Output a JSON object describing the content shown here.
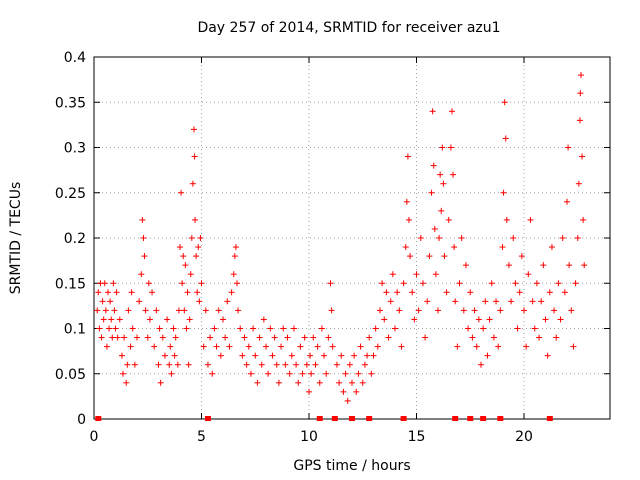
{
  "chart_data": {
    "type": "scatter",
    "title": "Day 257 of 2014, SRMTID for receiver azu1",
    "xlabel": "GPS time / hours",
    "ylabel": "SRMTID / TECUs",
    "xlim": [
      0,
      24
    ],
    "ylim": [
      0,
      0.4
    ],
    "xticks": [
      0,
      5,
      10,
      15,
      20
    ],
    "xtick_labels": [
      "0",
      "5",
      "10",
      "15",
      "20"
    ],
    "yticks": [
      0,
      0.05,
      0.1,
      0.15,
      0.2,
      0.25,
      0.3,
      0.35,
      0.4
    ],
    "ytick_labels": [
      "0",
      "0.05",
      "0.1",
      "0.15",
      "0.2",
      "0.25",
      "0.3",
      "0.35",
      "0.4"
    ],
    "grid": true,
    "marker": "+",
    "series_color": "#ff0000",
    "series": [
      {
        "name": "SRMTID",
        "points": [
          [
            0.15,
            0.12
          ],
          [
            0.2,
            0.14
          ],
          [
            0.25,
            0.1
          ],
          [
            0.3,
            0.15
          ],
          [
            0.35,
            0.09
          ],
          [
            0.4,
            0.13
          ],
          [
            0.45,
            0.11
          ],
          [
            0.5,
            0.15
          ],
          [
            0.55,
            0.12
          ],
          [
            0.6,
            0.08
          ],
          [
            0.65,
            0.14
          ],
          [
            0.7,
            0.1
          ],
          [
            0.75,
            0.13
          ],
          [
            0.8,
            0.11
          ],
          [
            0.85,
            0.09
          ],
          [
            0.9,
            0.15
          ],
          [
            0.95,
            0.12
          ],
          [
            1.0,
            0.1
          ],
          [
            1.05,
            0.14
          ],
          [
            1.1,
            0.09
          ],
          [
            1.2,
            0.11
          ],
          [
            1.3,
            0.07
          ],
          [
            1.35,
            0.05
          ],
          [
            1.4,
            0.09
          ],
          [
            1.5,
            0.04
          ],
          [
            1.55,
            0.06
          ],
          [
            1.6,
            0.12
          ],
          [
            1.7,
            0.08
          ],
          [
            1.75,
            0.14
          ],
          [
            1.8,
            0.1
          ],
          [
            1.9,
            0.06
          ],
          [
            2.0,
            0.09
          ],
          [
            2.1,
            0.13
          ],
          [
            2.2,
            0.16
          ],
          [
            2.25,
            0.22
          ],
          [
            2.3,
            0.2
          ],
          [
            2.35,
            0.18
          ],
          [
            2.4,
            0.12
          ],
          [
            2.5,
            0.09
          ],
          [
            2.55,
            0.15
          ],
          [
            2.6,
            0.11
          ],
          [
            2.7,
            0.14
          ],
          [
            2.8,
            0.08
          ],
          [
            2.9,
            0.12
          ],
          [
            3.0,
            0.06
          ],
          [
            3.05,
            0.1
          ],
          [
            3.1,
            0.04
          ],
          [
            3.2,
            0.09
          ],
          [
            3.3,
            0.07
          ],
          [
            3.4,
            0.11
          ],
          [
            3.5,
            0.06
          ],
          [
            3.55,
            0.08
          ],
          [
            3.6,
            0.05
          ],
          [
            3.7,
            0.1
          ],
          [
            3.75,
            0.07
          ],
          [
            3.8,
            0.09
          ],
          [
            3.9,
            0.06
          ],
          [
            3.95,
            0.12
          ],
          [
            4.0,
            0.19
          ],
          [
            4.05,
            0.25
          ],
          [
            4.1,
            0.15
          ],
          [
            4.15,
            0.18
          ],
          [
            4.2,
            0.12
          ],
          [
            4.25,
            0.17
          ],
          [
            4.3,
            0.1
          ],
          [
            4.35,
            0.14
          ],
          [
            4.4,
            0.06
          ],
          [
            4.45,
            0.11
          ],
          [
            4.5,
            0.16
          ],
          [
            4.55,
            0.2
          ],
          [
            4.6,
            0.26
          ],
          [
            4.65,
            0.32
          ],
          [
            4.68,
            0.29
          ],
          [
            4.7,
            0.22
          ],
          [
            4.75,
            0.18
          ],
          [
            4.8,
            0.14
          ],
          [
            4.85,
            0.19
          ],
          [
            4.9,
            0.13
          ],
          [
            4.95,
            0.2
          ],
          [
            5.0,
            0.15
          ],
          [
            5.1,
            0.08
          ],
          [
            5.2,
            0.12
          ],
          [
            5.3,
            0.06
          ],
          [
            5.4,
            0.09
          ],
          [
            5.5,
            0.05
          ],
          [
            5.6,
            0.1
          ],
          [
            5.7,
            0.08
          ],
          [
            5.8,
            0.12
          ],
          [
            5.9,
            0.07
          ],
          [
            6.0,
            0.11
          ],
          [
            6.1,
            0.09
          ],
          [
            6.2,
            0.13
          ],
          [
            6.3,
            0.08
          ],
          [
            6.4,
            0.14
          ],
          [
            6.5,
            0.16
          ],
          [
            6.55,
            0.18
          ],
          [
            6.6,
            0.19
          ],
          [
            6.65,
            0.15
          ],
          [
            6.7,
            0.12
          ],
          [
            6.8,
            0.1
          ],
          [
            6.9,
            0.07
          ],
          [
            7.0,
            0.09
          ],
          [
            7.1,
            0.06
          ],
          [
            7.2,
            0.08
          ],
          [
            7.3,
            0.05
          ],
          [
            7.4,
            0.1
          ],
          [
            7.5,
            0.07
          ],
          [
            7.6,
            0.04
          ],
          [
            7.7,
            0.09
          ],
          [
            7.8,
            0.06
          ],
          [
            7.9,
            0.11
          ],
          [
            8.0,
            0.08
          ],
          [
            8.1,
            0.05
          ],
          [
            8.2,
            0.1
          ],
          [
            8.3,
            0.07
          ],
          [
            8.4,
            0.09
          ],
          [
            8.5,
            0.06
          ],
          [
            8.6,
            0.04
          ],
          [
            8.7,
            0.08
          ],
          [
            8.8,
            0.1
          ],
          [
            8.9,
            0.06
          ],
          [
            9.0,
            0.09
          ],
          [
            9.1,
            0.05
          ],
          [
            9.2,
            0.07
          ],
          [
            9.3,
            0.1
          ],
          [
            9.4,
            0.06
          ],
          [
            9.5,
            0.04
          ],
          [
            9.6,
            0.08
          ],
          [
            9.7,
            0.05
          ],
          [
            9.8,
            0.09
          ],
          [
            9.9,
            0.06
          ],
          [
            10.0,
            0.03
          ],
          [
            10.05,
            0.07
          ],
          [
            10.1,
            0.05
          ],
          [
            10.2,
            0.09
          ],
          [
            10.3,
            0.06
          ],
          [
            10.4,
            0.08
          ],
          [
            10.5,
            0.04
          ],
          [
            10.6,
            0.1
          ],
          [
            10.7,
            0.07
          ],
          [
            10.8,
            0.05
          ],
          [
            10.9,
            0.09
          ],
          [
            11.0,
            0.15
          ],
          [
            11.05,
            0.12
          ],
          [
            11.1,
            0.08
          ],
          [
            11.3,
            0.06
          ],
          [
            11.4,
            0.04
          ],
          [
            11.5,
            0.07
          ],
          [
            11.6,
            0.03
          ],
          [
            11.7,
            0.05
          ],
          [
            11.8,
            0.02
          ],
          [
            11.9,
            0.06
          ],
          [
            12.0,
            0.04
          ],
          [
            12.1,
            0.07
          ],
          [
            12.2,
            0.03
          ],
          [
            12.3,
            0.05
          ],
          [
            12.4,
            0.08
          ],
          [
            12.5,
            0.04
          ],
          [
            12.6,
            0.06
          ],
          [
            12.7,
            0.07
          ],
          [
            12.8,
            0.09
          ],
          [
            12.9,
            0.05
          ],
          [
            13.0,
            0.07
          ],
          [
            13.1,
            0.1
          ],
          [
            13.2,
            0.08
          ],
          [
            13.3,
            0.12
          ],
          [
            13.4,
            0.15
          ],
          [
            13.5,
            0.11
          ],
          [
            13.6,
            0.14
          ],
          [
            13.7,
            0.09
          ],
          [
            13.8,
            0.13
          ],
          [
            13.9,
            0.16
          ],
          [
            14.0,
            0.1
          ],
          [
            14.1,
            0.14
          ],
          [
            14.2,
            0.12
          ],
          [
            14.3,
            0.08
          ],
          [
            14.4,
            0.15
          ],
          [
            14.5,
            0.19
          ],
          [
            14.55,
            0.24
          ],
          [
            14.6,
            0.29
          ],
          [
            14.65,
            0.22
          ],
          [
            14.7,
            0.18
          ],
          [
            14.8,
            0.14
          ],
          [
            14.9,
            0.11
          ],
          [
            15.0,
            0.16
          ],
          [
            15.1,
            0.12
          ],
          [
            15.2,
            0.2
          ],
          [
            15.3,
            0.15
          ],
          [
            15.4,
            0.09
          ],
          [
            15.5,
            0.13
          ],
          [
            15.6,
            0.18
          ],
          [
            15.7,
            0.25
          ],
          [
            15.75,
            0.34
          ],
          [
            15.8,
            0.28
          ],
          [
            15.85,
            0.21
          ],
          [
            15.9,
            0.16
          ],
          [
            16.0,
            0.12
          ],
          [
            16.05,
            0.2
          ],
          [
            16.1,
            0.27
          ],
          [
            16.15,
            0.23
          ],
          [
            16.2,
            0.3
          ],
          [
            16.25,
            0.26
          ],
          [
            16.3,
            0.18
          ],
          [
            16.4,
            0.14
          ],
          [
            16.5,
            0.22
          ],
          [
            16.6,
            0.3
          ],
          [
            16.65,
            0.34
          ],
          [
            16.7,
            0.27
          ],
          [
            16.75,
            0.19
          ],
          [
            16.8,
            0.13
          ],
          [
            16.9,
            0.08
          ],
          [
            17.0,
            0.15
          ],
          [
            17.1,
            0.2
          ],
          [
            17.2,
            0.12
          ],
          [
            17.3,
            0.17
          ],
          [
            17.4,
            0.1
          ],
          [
            17.5,
            0.14
          ],
          [
            17.6,
            0.09
          ],
          [
            17.7,
            0.12
          ],
          [
            17.8,
            0.08
          ],
          [
            17.9,
            0.11
          ],
          [
            18.0,
            0.06
          ],
          [
            18.1,
            0.1
          ],
          [
            18.2,
            0.13
          ],
          [
            18.3,
            0.07
          ],
          [
            18.4,
            0.11
          ],
          [
            18.5,
            0.15
          ],
          [
            18.6,
            0.09
          ],
          [
            18.7,
            0.13
          ],
          [
            18.8,
            0.08
          ],
          [
            18.9,
            0.12
          ],
          [
            19.0,
            0.19
          ],
          [
            19.05,
            0.25
          ],
          [
            19.1,
            0.35
          ],
          [
            19.15,
            0.31
          ],
          [
            19.2,
            0.22
          ],
          [
            19.3,
            0.17
          ],
          [
            19.4,
            0.13
          ],
          [
            19.5,
            0.2
          ],
          [
            19.6,
            0.15
          ],
          [
            19.7,
            0.1
          ],
          [
            19.8,
            0.14
          ],
          [
            19.9,
            0.18
          ],
          [
            20.0,
            0.12
          ],
          [
            20.1,
            0.08
          ],
          [
            20.2,
            0.16
          ],
          [
            20.3,
            0.22
          ],
          [
            20.4,
            0.13
          ],
          [
            20.5,
            0.1
          ],
          [
            20.6,
            0.15
          ],
          [
            20.7,
            0.09
          ],
          [
            20.8,
            0.13
          ],
          [
            20.9,
            0.17
          ],
          [
            21.0,
            0.11
          ],
          [
            21.1,
            0.07
          ],
          [
            21.2,
            0.14
          ],
          [
            21.3,
            0.19
          ],
          [
            21.4,
            0.12
          ],
          [
            21.5,
            0.09
          ],
          [
            21.6,
            0.15
          ],
          [
            21.7,
            0.11
          ],
          [
            21.8,
            0.2
          ],
          [
            21.9,
            0.14
          ],
          [
            22.0,
            0.24
          ],
          [
            22.05,
            0.3
          ],
          [
            22.1,
            0.17
          ],
          [
            22.2,
            0.12
          ],
          [
            22.3,
            0.08
          ],
          [
            22.4,
            0.15
          ],
          [
            22.5,
            0.2
          ],
          [
            22.55,
            0.26
          ],
          [
            22.6,
            0.33
          ],
          [
            22.62,
            0.36
          ],
          [
            22.65,
            0.38
          ],
          [
            22.7,
            0.29
          ],
          [
            22.75,
            0.22
          ],
          [
            22.8,
            0.17
          ]
        ]
      }
    ],
    "zero_markers_x": [
      0.2,
      5.3,
      10.5,
      11.2,
      12.0,
      12.8,
      14.4,
      16.8,
      17.5,
      18.1,
      18.9,
      21.2
    ]
  }
}
